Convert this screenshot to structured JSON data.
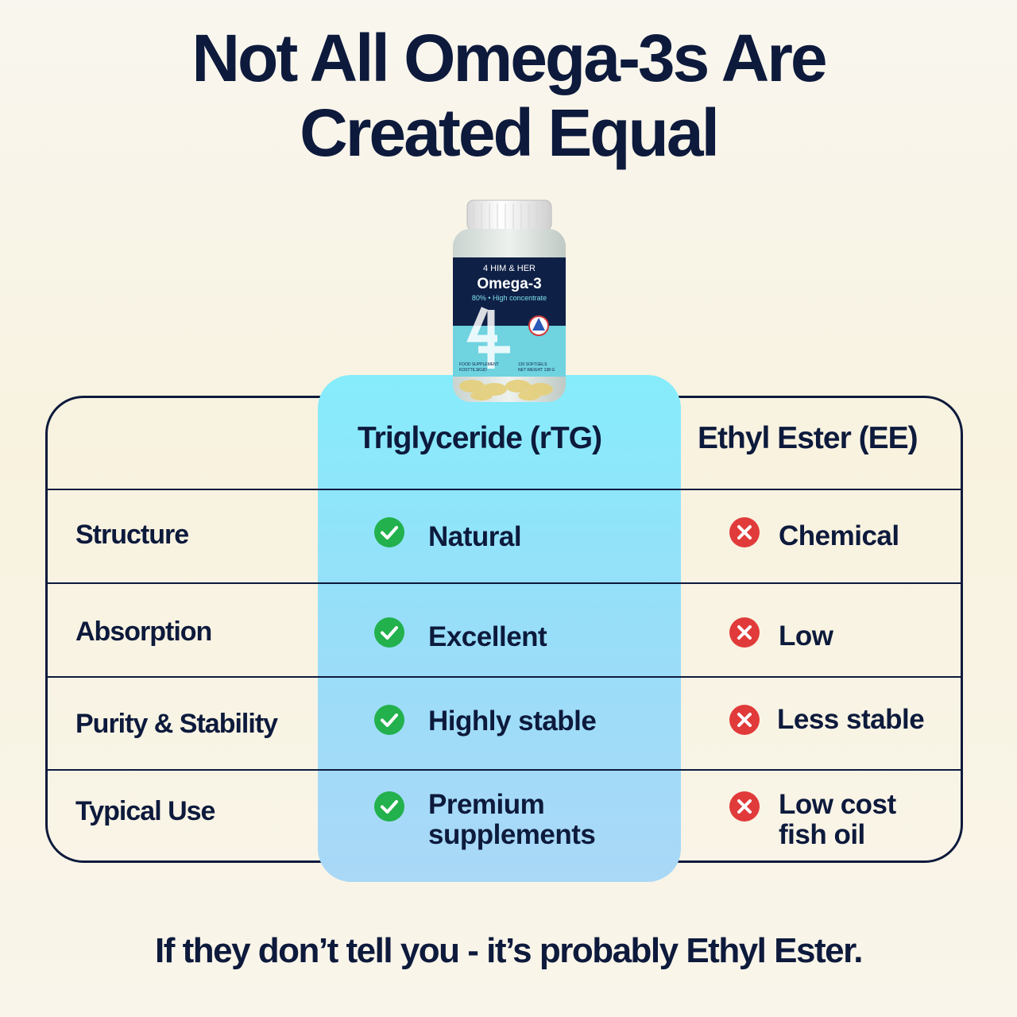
{
  "headline": {
    "line1": "Not All Omega-3s Are",
    "line2": "Created Equal"
  },
  "product": {
    "brand": "4 HIM & HER",
    "name": "Omega-3",
    "subtitle": "80% • High concentrate",
    "left_note_1": "FOOD SUPPLEMENT",
    "left_note_2": "KOSTTILSKUD",
    "right_note_1": "120 SOFTGELS",
    "right_note_2": "NET WEIGHT 138 G"
  },
  "table": {
    "columns": {
      "good": "Triglyceride (rTG)",
      "bad": "Ethyl Ester (EE)"
    },
    "rows": [
      {
        "label": "Structure",
        "good": "Natural",
        "bad": "Chemical"
      },
      {
        "label": "Absorption",
        "good": "Excellent",
        "bad": "Low"
      },
      {
        "label": "Purity & Stability",
        "good": "Highly stable",
        "bad": "Less stable"
      },
      {
        "label": "Typical Use",
        "good_line1": "Premium",
        "good_line2": "supplements",
        "bad_line1": "Low cost",
        "bad_line2": "fish oil"
      }
    ]
  },
  "icons": {
    "good": "check-circle-icon",
    "bad": "x-circle-icon",
    "good_color": "#22b14c",
    "bad_color": "#e13a3a"
  },
  "footer": "If they don’t tell you - it’s probably Ethyl Ester.",
  "colors": {
    "navy": "#0d1a3c",
    "highlight": "#8ee4fa"
  }
}
